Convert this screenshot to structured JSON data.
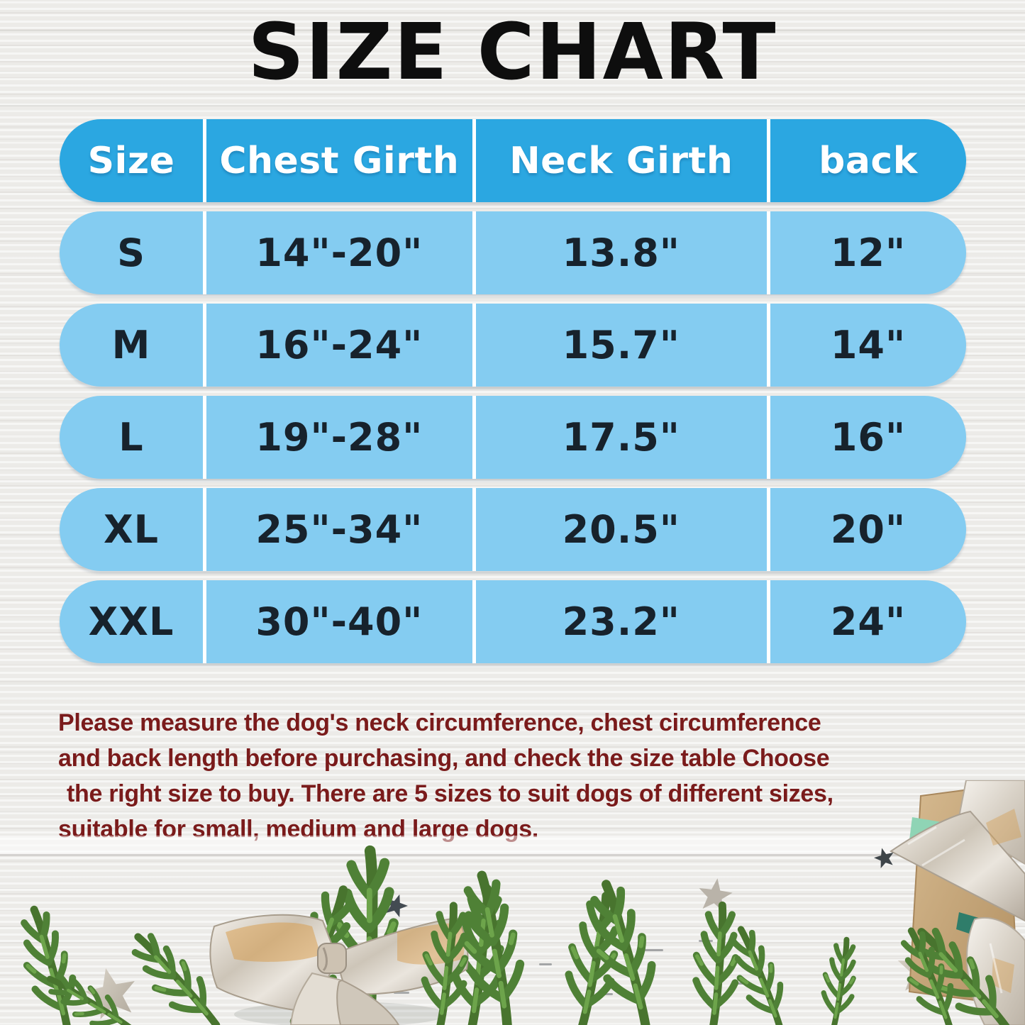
{
  "title": "SIZE CHART",
  "table": {
    "columns": [
      "Size",
      "Chest Girth",
      "Neck Girth",
      "back"
    ],
    "rows": [
      [
        "S",
        "14\"-20\"",
        "13.8\"",
        "12\""
      ],
      [
        "M",
        "16\"-24\"",
        "15.7\"",
        "14\""
      ],
      [
        "L",
        "19\"-28\"",
        "17.5\"",
        "16\""
      ],
      [
        "XL",
        "25\"-34\"",
        "20.5\"",
        "20\""
      ],
      [
        "XXL",
        "30\"-40\"",
        "23.2\"",
        "24\""
      ]
    ]
  },
  "note_lines": [
    "Please measure the dog's neck circumference, chest circumference",
    "and back length before purchasing, and check the size table Choose",
    "the right size to buy. There are 5 sizes to suit dogs of different sizes,",
    "suitable for small, medium and large dogs."
  ],
  "colors": {
    "header_blue": "#2BA7E1",
    "row_blue": "#84CCF1",
    "divider_white": "#FFFFFF",
    "note_red": "#7A1B1B",
    "title_black": "#0E0E0E"
  },
  "chart_data": {
    "type": "table",
    "title": "SIZE CHART",
    "columns": [
      "Size",
      "Chest Girth",
      "Neck Girth",
      "back"
    ],
    "rows": [
      [
        "S",
        "14\"-20\"",
        "13.8\"",
        "12\""
      ],
      [
        "M",
        "16\"-24\"",
        "15.7\"",
        "14\""
      ],
      [
        "L",
        "19\"-28\"",
        "17.5\"",
        "16\""
      ],
      [
        "XL",
        "25\"-34\"",
        "20.5\"",
        "20\""
      ],
      [
        "XXL",
        "30\"-40\"",
        "23.2\"",
        "24\""
      ]
    ],
    "note": "Please measure the dog's neck circumference, chest circumference and back length before purchasing, and check the size table Choose the right size to buy. There are 5 sizes to suit dogs of different sizes, suitable for small, medium and large dogs."
  }
}
